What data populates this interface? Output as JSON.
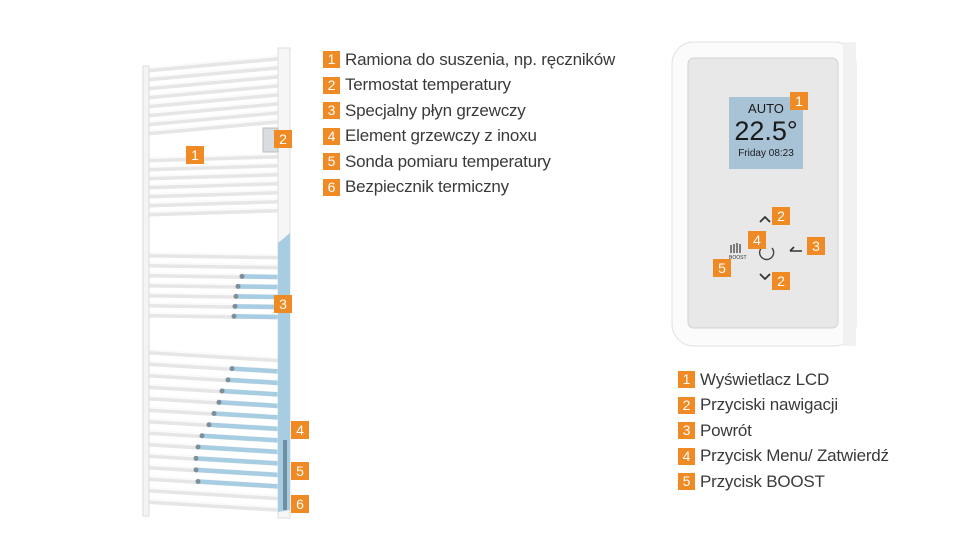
{
  "colors": {
    "accent": "#f08a24",
    "lcd": "#a9c3d6",
    "fluid": "#a7cde3"
  },
  "radiator_legend": [
    {
      "num": "1",
      "label": "Ramiona do suszenia, np. ręczników"
    },
    {
      "num": "2",
      "label": "Termostat temperatury"
    },
    {
      "num": "3",
      "label": "Specjalny płyn grzewczy"
    },
    {
      "num": "4",
      "label": "Element grzewczy z inoxu"
    },
    {
      "num": "5",
      "label": "Sonda pomiaru temperatury"
    },
    {
      "num": "6",
      "label": "Bezpiecznik termiczny"
    }
  ],
  "controller_legend": [
    {
      "num": "1",
      "label": "Wyświetlacz LCD"
    },
    {
      "num": "2",
      "label": "Przyciski nawigacji"
    },
    {
      "num": "3",
      "label": "Powrót"
    },
    {
      "num": "4",
      "label": "Przycisk Menu/ Zatwierdź"
    },
    {
      "num": "5",
      "label": "Przycisk BOOST"
    }
  ],
  "lcd": {
    "mode": "AUTO",
    "temperature": "22.5°",
    "datetime": "Friday 08:23"
  },
  "boost_icon_label": "BOOST",
  "icons": {
    "up": "chevron-up-icon",
    "down": "chevron-down-icon",
    "menu": "menu-confirm-icon",
    "back": "back-arrow-icon",
    "boost": "boost-icon"
  }
}
